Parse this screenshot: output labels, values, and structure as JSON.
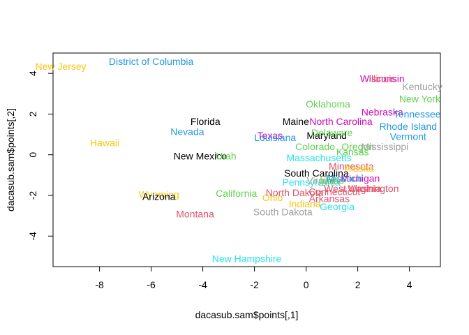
{
  "chart_data": {
    "type": "scatter",
    "title": "",
    "xlabel": "dacasub.sam$points[,1]",
    "ylabel": "dacasub.sam$points[,2]",
    "xlim": [
      -9.8,
      5.2
    ],
    "ylim": [
      -5.5,
      5.0
    ],
    "grid": false,
    "x_ticks": [
      -8,
      -6,
      -4,
      -2,
      0,
      2,
      4
    ],
    "y_ticks": [
      -4,
      -2,
      0,
      2,
      4
    ],
    "colors": {
      "black": "#000000",
      "red": "#DF536B",
      "green": "#61D04F",
      "blue": "#2297E6",
      "cyan": "#28E2E5",
      "magenta": "#CD0BBC",
      "yellow": "#F5C710",
      "gray": "#9E9E9E"
    },
    "points": [
      {
        "label": "New Jersey",
        "x": -9.5,
        "y": 4.3,
        "color": "yellow"
      },
      {
        "label": "District of Columbia",
        "x": -6.0,
        "y": 4.55,
        "color": "blue"
      },
      {
        "label": "Hawaii",
        "x": -7.8,
        "y": 0.55,
        "color": "yellow"
      },
      {
        "label": "Nevada",
        "x": -4.6,
        "y": 1.1,
        "color": "blue"
      },
      {
        "label": "Florida",
        "x": -3.9,
        "y": 1.6,
        "color": "black"
      },
      {
        "label": "New Mexico",
        "x": -4.1,
        "y": -0.1,
        "color": "black"
      },
      {
        "label": "Utah",
        "x": -3.1,
        "y": -0.1,
        "color": "green"
      },
      {
        "label": "Wyoming",
        "x": -5.7,
        "y": -2.0,
        "color": "yellow"
      },
      {
        "label": "Arizona",
        "x": -5.7,
        "y": -2.1,
        "color": "black"
      },
      {
        "label": "California",
        "x": -2.7,
        "y": -1.95,
        "color": "green"
      },
      {
        "label": "Montana",
        "x": -4.3,
        "y": -2.95,
        "color": "red"
      },
      {
        "label": "New Hampshire",
        "x": -2.3,
        "y": -5.15,
        "color": "cyan"
      },
      {
        "label": "South Dakota",
        "x": -0.9,
        "y": -2.85,
        "color": "gray"
      },
      {
        "label": "Ohio",
        "x": -1.3,
        "y": -2.15,
        "color": "yellow"
      },
      {
        "label": "Texas",
        "x": -1.4,
        "y": 0.9,
        "color": "magenta"
      },
      {
        "label": "Louisiana",
        "x": -1.2,
        "y": 0.8,
        "color": "blue"
      },
      {
        "label": "Maine",
        "x": -0.4,
        "y": 1.6,
        "color": "black"
      },
      {
        "label": "Maryland",
        "x": 0.8,
        "y": 0.9,
        "color": "black"
      },
      {
        "label": "Delaware",
        "x": 1.0,
        "y": 1.05,
        "color": "green"
      },
      {
        "label": "North Carolina",
        "x": 1.35,
        "y": 1.6,
        "color": "magenta"
      },
      {
        "label": "Oklahoma",
        "x": 0.85,
        "y": 2.45,
        "color": "green"
      },
      {
        "label": "Colorado",
        "x": 0.35,
        "y": 0.35,
        "color": "green"
      },
      {
        "label": "Oregon",
        "x": 2.0,
        "y": 0.35,
        "color": "green"
      },
      {
        "label": "Kansas",
        "x": 1.8,
        "y": 0.1,
        "color": "green"
      },
      {
        "label": "Massachusetts",
        "x": 0.5,
        "y": -0.2,
        "color": "cyan"
      },
      {
        "label": "Mississippi",
        "x": 3.05,
        "y": 0.35,
        "color": "gray"
      },
      {
        "label": "Vermont",
        "x": 3.95,
        "y": 0.85,
        "color": "blue"
      },
      {
        "label": "Rhode Island",
        "x": 3.95,
        "y": 1.35,
        "color": "blue"
      },
      {
        "label": "Nebraska",
        "x": 2.95,
        "y": 2.05,
        "color": "magenta"
      },
      {
        "label": "Tennessee",
        "x": 4.3,
        "y": 1.95,
        "color": "blue"
      },
      {
        "label": "New York",
        "x": 4.4,
        "y": 2.7,
        "color": "green"
      },
      {
        "label": "Kentucky",
        "x": 4.5,
        "y": 3.3,
        "color": "gray"
      },
      {
        "label": "Wisconsin",
        "x": 2.95,
        "y": 3.7,
        "color": "magenta"
      },
      {
        "label": "Illinois",
        "x": 2.95,
        "y": 3.7,
        "color": "red"
      },
      {
        "label": "South Carolina",
        "x": 0.4,
        "y": -0.95,
        "color": "black"
      },
      {
        "label": "Minnesota",
        "x": 1.75,
        "y": -0.6,
        "color": "red"
      },
      {
        "label": "Alaska",
        "x": 2.05,
        "y": -0.7,
        "color": "yellow"
      },
      {
        "label": "Pennsylvania",
        "x": 0.2,
        "y": -1.4,
        "color": "cyan"
      },
      {
        "label": "Virginia",
        "x": 0.65,
        "y": -1.3,
        "color": "gray"
      },
      {
        "label": "Idaho",
        "x": 1.0,
        "y": -1.3,
        "color": "green"
      },
      {
        "label": "Michigan",
        "x": 2.1,
        "y": -1.2,
        "color": "magenta"
      },
      {
        "label": "Missouri",
        "x": 1.5,
        "y": -1.2,
        "color": "blue"
      },
      {
        "label": "West Virginia",
        "x": 1.8,
        "y": -1.7,
        "color": "red"
      },
      {
        "label": "Washington",
        "x": 2.6,
        "y": -1.7,
        "color": "red"
      },
      {
        "label": "North Dakota",
        "x": -0.45,
        "y": -1.9,
        "color": "red"
      },
      {
        "label": "Connecticut",
        "x": 1.1,
        "y": -1.85,
        "color": "red"
      },
      {
        "label": "Indiana",
        "x": -0.05,
        "y": -2.45,
        "color": "yellow"
      },
      {
        "label": "Arkansas",
        "x": 0.9,
        "y": -2.2,
        "color": "red"
      },
      {
        "label": "Georgia",
        "x": 1.2,
        "y": -2.6,
        "color": "cyan"
      }
    ]
  }
}
